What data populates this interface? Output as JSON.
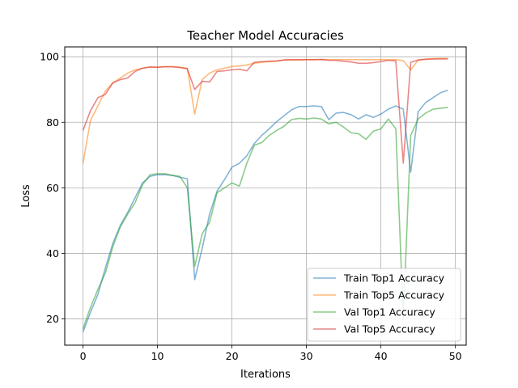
{
  "chart_data": {
    "type": "line",
    "title": "Teacher Model Accuracies",
    "xlabel": "Iterations",
    "ylabel": "Loss",
    "xlim": [
      -2.45,
      51.45
    ],
    "ylim": [
      12,
      103
    ],
    "xticks": [
      0,
      10,
      20,
      30,
      40,
      50
    ],
    "yticks": [
      20,
      40,
      60,
      80,
      100
    ],
    "grid": true,
    "legend_position": "bottom-right",
    "x": [
      0,
      1,
      2,
      3,
      4,
      5,
      6,
      7,
      8,
      9,
      10,
      11,
      12,
      13,
      14,
      15,
      16,
      17,
      18,
      19,
      20,
      21,
      22,
      23,
      24,
      25,
      26,
      27,
      28,
      29,
      30,
      31,
      32,
      33,
      34,
      35,
      36,
      37,
      38,
      39,
      40,
      41,
      42,
      43,
      44,
      45,
      46,
      47,
      48,
      49
    ],
    "series": [
      {
        "name": "Train Top1 Accuracy",
        "color": "#1f77b4",
        "values": [
          16.0,
          22.0,
          27.5,
          35.5,
          43.0,
          48.5,
          52.5,
          57.0,
          61.5,
          63.5,
          64.0,
          64.0,
          63.8,
          63.2,
          62.8,
          32.0,
          41.5,
          52.0,
          59.0,
          62.5,
          66.3,
          67.5,
          69.8,
          73.5,
          76.0,
          78.0,
          80.2,
          82.0,
          83.8,
          84.8,
          84.8,
          85.0,
          84.8,
          80.8,
          82.8,
          83.0,
          82.3,
          81.0,
          82.3,
          81.5,
          82.5,
          84.0,
          85.0,
          84.0,
          64.8,
          83.2,
          86.0,
          87.5,
          89.0,
          89.8
        ]
      },
      {
        "name": "Train Top5 Accuracy",
        "color": "#ff7f0e",
        "values": [
          67.5,
          80.5,
          85.0,
          89.5,
          92.0,
          93.5,
          95.0,
          96.0,
          96.5,
          96.8,
          96.8,
          97.0,
          97.0,
          96.8,
          96.5,
          82.5,
          93.0,
          95.0,
          96.0,
          96.5,
          97.0,
          97.2,
          97.5,
          98.0,
          98.3,
          98.5,
          98.7,
          99.0,
          99.0,
          99.0,
          99.1,
          99.1,
          99.1,
          99.1,
          99.1,
          99.1,
          99.1,
          99.1,
          99.1,
          99.1,
          99.1,
          99.1,
          99.1,
          98.8,
          96.0,
          99.0,
          99.3,
          99.4,
          99.5,
          99.5
        ]
      },
      {
        "name": "Val Top1 Accuracy",
        "color": "#2ca02c",
        "values": [
          17.0,
          23.5,
          29.0,
          34.0,
          42.0,
          48.0,
          52.0,
          55.5,
          61.0,
          64.0,
          64.3,
          64.3,
          63.8,
          63.5,
          60.0,
          36.0,
          46.0,
          49.5,
          58.5,
          60.0,
          61.5,
          60.5,
          67.5,
          73.0,
          73.8,
          76.0,
          77.5,
          78.8,
          80.8,
          81.2,
          81.0,
          81.3,
          81.0,
          79.5,
          80.0,
          78.5,
          76.8,
          76.5,
          74.8,
          77.3,
          78.0,
          81.0,
          78.0,
          20.0,
          76.0,
          81.0,
          82.8,
          84.0,
          84.3,
          84.5
        ]
      },
      {
        "name": "Val Top5 Accuracy",
        "color": "#d62728",
        "values": [
          77.5,
          83.5,
          87.5,
          88.5,
          92.0,
          93.0,
          93.5,
          95.5,
          96.5,
          96.9,
          96.8,
          96.9,
          96.9,
          96.7,
          96.3,
          90.0,
          92.5,
          92.3,
          95.5,
          95.7,
          96.0,
          96.2,
          95.7,
          98.3,
          98.5,
          98.6,
          98.7,
          99.0,
          99.1,
          99.1,
          99.1,
          99.1,
          99.2,
          98.9,
          98.9,
          98.6,
          98.4,
          98.0,
          98.0,
          98.2,
          98.5,
          98.9,
          98.7,
          67.5,
          98.3,
          99.0,
          99.2,
          99.3,
          99.3,
          99.3
        ]
      }
    ]
  }
}
